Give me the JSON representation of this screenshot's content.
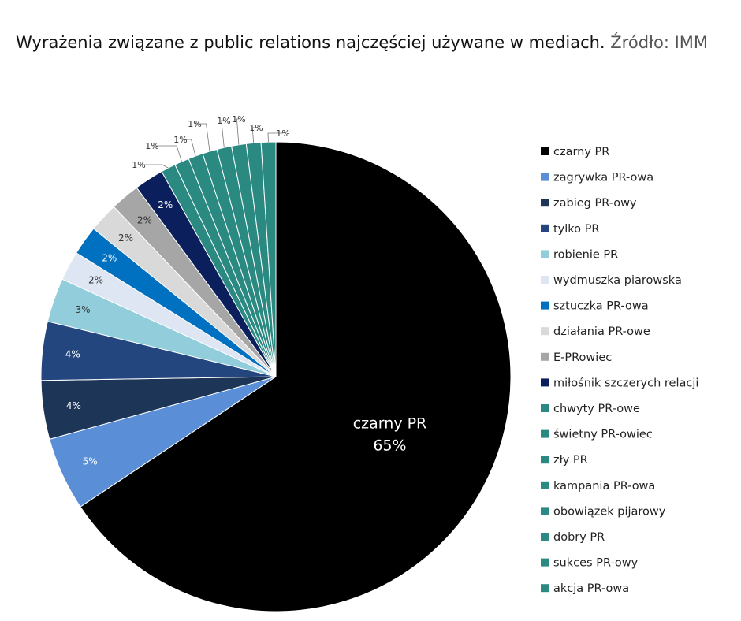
{
  "title": "Wyrażenia związane z public relations najczęściej używane w mediach.",
  "source": "Źródło: IMM",
  "chart_data": {
    "type": "pie",
    "title": "Wyrażenia związane z public relations najczęściej używane w mediach.",
    "legend_position": "right",
    "slices": [
      {
        "name": "czarny PR",
        "value": 65,
        "label": "65%",
        "color": "#000000"
      },
      {
        "name": "zagrywka PR-owa",
        "value": 5,
        "label": "5%",
        "color": "#5a8fd8"
      },
      {
        "name": "zabieg PR-owy",
        "value": 4,
        "label": "4%",
        "color": "#1d3557"
      },
      {
        "name": "tylko PR",
        "value": 4,
        "label": "4%",
        "color": "#23467f"
      },
      {
        "name": "robienie PR",
        "value": 3,
        "label": "3%",
        "color": "#92cddc"
      },
      {
        "name": "wydmuszka piarowska",
        "value": 2,
        "label": "2%",
        "color": "#dde6f2"
      },
      {
        "name": "sztuczka PR-owa",
        "value": 2,
        "label": "2%",
        "color": "#0070c0"
      },
      {
        "name": "działania PR-owe",
        "value": 2,
        "label": "2%",
        "color": "#d9d9d9"
      },
      {
        "name": "E-PRowiec",
        "value": 2,
        "label": "2%",
        "color": "#a6a6a6"
      },
      {
        "name": "miłośnik szczerych relacji",
        "value": 2,
        "label": "2%",
        "color": "#0a1f5c"
      },
      {
        "name": "chwyty PR-owe",
        "value": 1,
        "label": "1%",
        "color": "#2a8a82"
      },
      {
        "name": "świetny PR-owiec",
        "value": 1,
        "label": "1%",
        "color": "#2a8a82"
      },
      {
        "name": "zły PR",
        "value": 1,
        "label": "1%",
        "color": "#2a8a82"
      },
      {
        "name": "kampania PR-owa",
        "value": 1,
        "label": "1%",
        "color": "#2a8a82"
      },
      {
        "name": "obowiązek pijarowy",
        "value": 1,
        "label": "1%",
        "color": "#2a8a82"
      },
      {
        "name": "dobry PR",
        "value": 1,
        "label": "1%",
        "color": "#2a8a82"
      },
      {
        "name": "sukces PR-owy",
        "value": 1,
        "label": "1%",
        "color": "#2a8a82"
      },
      {
        "name": "akcja PR-owa",
        "value": 1,
        "label": "1%",
        "color": "#2a8a82"
      }
    ]
  }
}
